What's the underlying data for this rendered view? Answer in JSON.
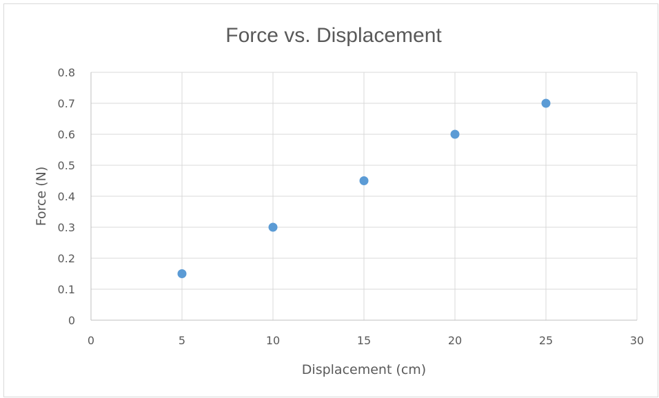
{
  "chart_data": {
    "type": "scatter",
    "title": "Force vs. Displacement",
    "xlabel": "Displacement (cm)",
    "ylabel": "Force (N)",
    "xlim": [
      0,
      30
    ],
    "ylim": [
      0,
      0.8
    ],
    "x_ticks": [
      "0",
      "5",
      "10",
      "15",
      "20",
      "25",
      "30"
    ],
    "y_ticks": [
      "0",
      "0.1",
      "0.2",
      "0.3",
      "0.4",
      "0.5",
      "0.6",
      "0.7",
      "0.8"
    ],
    "x_tick_values": [
      0,
      5,
      10,
      15,
      20,
      25,
      30
    ],
    "y_tick_values": [
      0,
      0.1,
      0.2,
      0.3,
      0.4,
      0.5,
      0.6,
      0.7,
      0.8
    ],
    "grid": true,
    "legend": "none",
    "marker_color": "#5b9bd5",
    "series": [
      {
        "x": [
          5,
          10,
          15,
          20,
          25
        ],
        "y": [
          0.15,
          0.3,
          0.45,
          0.6,
          0.7
        ]
      }
    ]
  }
}
